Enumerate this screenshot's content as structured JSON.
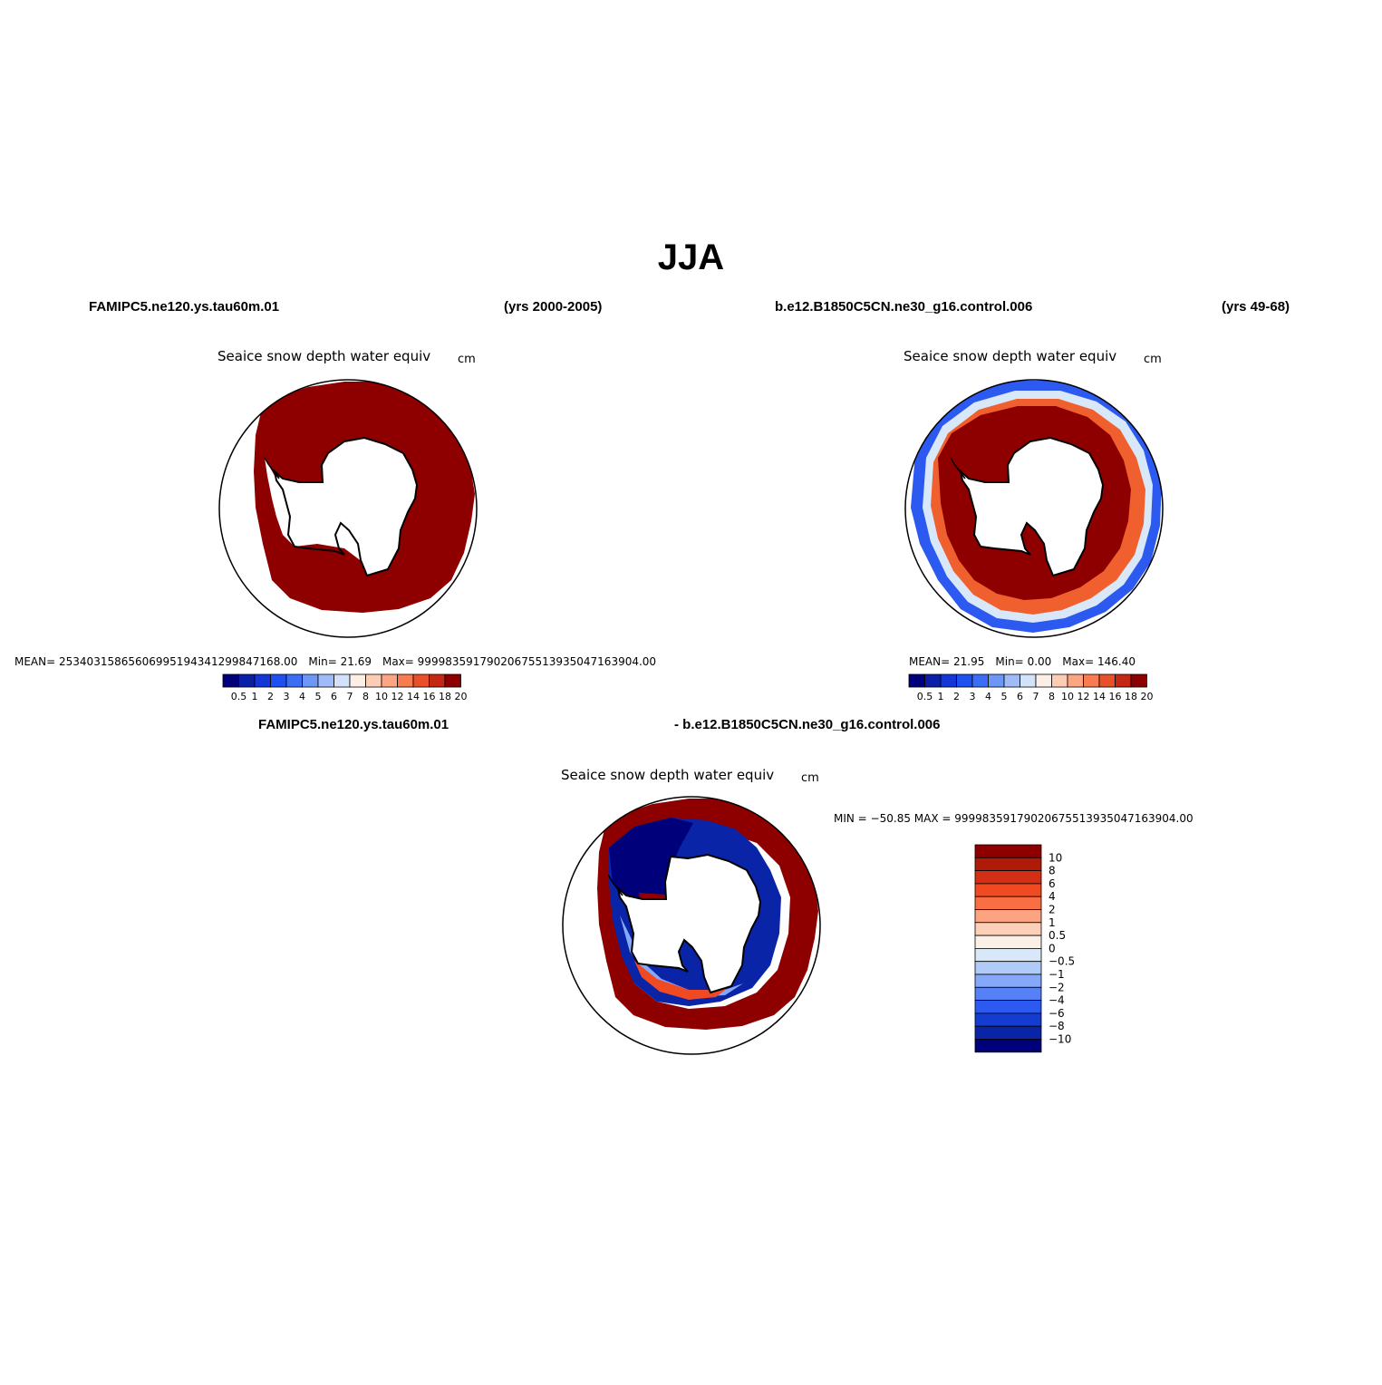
{
  "title": "JJA",
  "panels": [
    {
      "case": "FAMIPC5.ne120.ys.tau60m.01",
      "years": "(yrs 2000-2005)",
      "plot_title": "Seaice snow depth water equiv",
      "units": "cm",
      "stats": {
        "mean_label": "MEAN=",
        "mean": "25340315865606995194341299847168.00",
        "min_label": "Min=",
        "min": "21.69",
        "max_label": "Max=",
        "max": "99998359179020675513935047163904.00"
      }
    },
    {
      "case": "b.e12.B1850C5CN.ne30_g16.control.006",
      "years": "(yrs 49-68)",
      "plot_title": "Seaice snow depth water equiv",
      "units": "cm",
      "stats": {
        "mean_label": "MEAN=",
        "mean": "21.95",
        "min_label": "Min=",
        "min": "0.00",
        "max_label": "Max=",
        "max": "146.40"
      }
    }
  ],
  "diff_panel": {
    "case_a": "FAMIPC5.ne120.ys.tau60m.01",
    "case_b": "- b.e12.B1850C5CN.ne30_g16.control.006",
    "plot_title": "Seaice snow depth water equiv",
    "units": "cm",
    "minmax": "MIN = −50.85 MAX = 99998359179020675513935047163904.00"
  },
  "colorbar_main": {
    "labels": [
      "0.5",
      "1",
      "2",
      "3",
      "4",
      "5",
      "6",
      "7",
      "8",
      "10",
      "12",
      "14",
      "16",
      "18",
      "20"
    ],
    "colors": [
      "#00007a",
      "#0a1fa8",
      "#1436d6",
      "#1e50f0",
      "#3c6ef5",
      "#6e96f5",
      "#a0bcf8",
      "#d2e2fa",
      "#fbefe6",
      "#fccdb4",
      "#fca582",
      "#f87c50",
      "#e8502a",
      "#c42814",
      "#8e0000"
    ]
  },
  "colorbar_diff": {
    "labels": [
      "10",
      "8",
      "6",
      "4",
      "2",
      "1",
      "0.5",
      "0",
      "−0.5",
      "−1",
      "−2",
      "−4",
      "−6",
      "−8",
      "−10"
    ],
    "colors": [
      "#8e0000",
      "#b01a08",
      "#d42e14",
      "#f04a22",
      "#fa6e44",
      "#fca482",
      "#fcd0b8",
      "#faf0e6",
      "#d8e8f8",
      "#b0cbf8",
      "#86a8f8",
      "#5680f5",
      "#2c5af0",
      "#143cd0",
      "#0a24a8",
      "#00007a"
    ]
  }
}
